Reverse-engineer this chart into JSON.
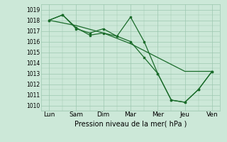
{
  "xlabel": "Pression niveau de la mer( hPa )",
  "ylim": [
    1009.5,
    1019.5
  ],
  "yticks": [
    1010,
    1011,
    1012,
    1013,
    1014,
    1015,
    1016,
    1017,
    1018,
    1019
  ],
  "xtick_labels": [
    "Lun",
    "Sam",
    "Dim",
    "Mar",
    "Mer",
    "Jeu",
    "Ven"
  ],
  "xtick_positions": [
    0,
    1,
    2,
    3,
    4,
    5,
    6
  ],
  "bg_color": "#cce8d8",
  "grid_color": "#9dc8b0",
  "line_color": "#1a6b2a",
  "line1_x": [
    0.0,
    1.0,
    2.0,
    3.0,
    4.0,
    5.0,
    6.0
  ],
  "line1_y": [
    1018.0,
    1017.5,
    1016.8,
    1015.8,
    1014.5,
    1013.2,
    1013.2
  ],
  "line2_x": [
    0.0,
    0.5,
    1.0,
    1.5,
    2.0,
    2.5,
    3.0,
    3.5,
    4.0,
    4.5,
    5.0,
    5.5,
    6.0
  ],
  "line2_y": [
    1018.0,
    1018.5,
    1017.3,
    1016.6,
    1016.8,
    1016.5,
    1018.3,
    1016.0,
    1013.0,
    1010.5,
    1010.3,
    1011.5,
    1013.2
  ],
  "line3_x": [
    0.0,
    0.5,
    1.0,
    1.5,
    2.0,
    2.5,
    3.0,
    3.5,
    4.0,
    4.5,
    5.0,
    5.5,
    6.0
  ],
  "line3_y": [
    1018.0,
    1018.5,
    1017.2,
    1016.8,
    1017.2,
    1016.5,
    1016.0,
    1014.5,
    1013.0,
    1010.5,
    1010.3,
    1011.5,
    1013.2
  ],
  "figsize": [
    3.2,
    2.0
  ],
  "dpi": 100
}
